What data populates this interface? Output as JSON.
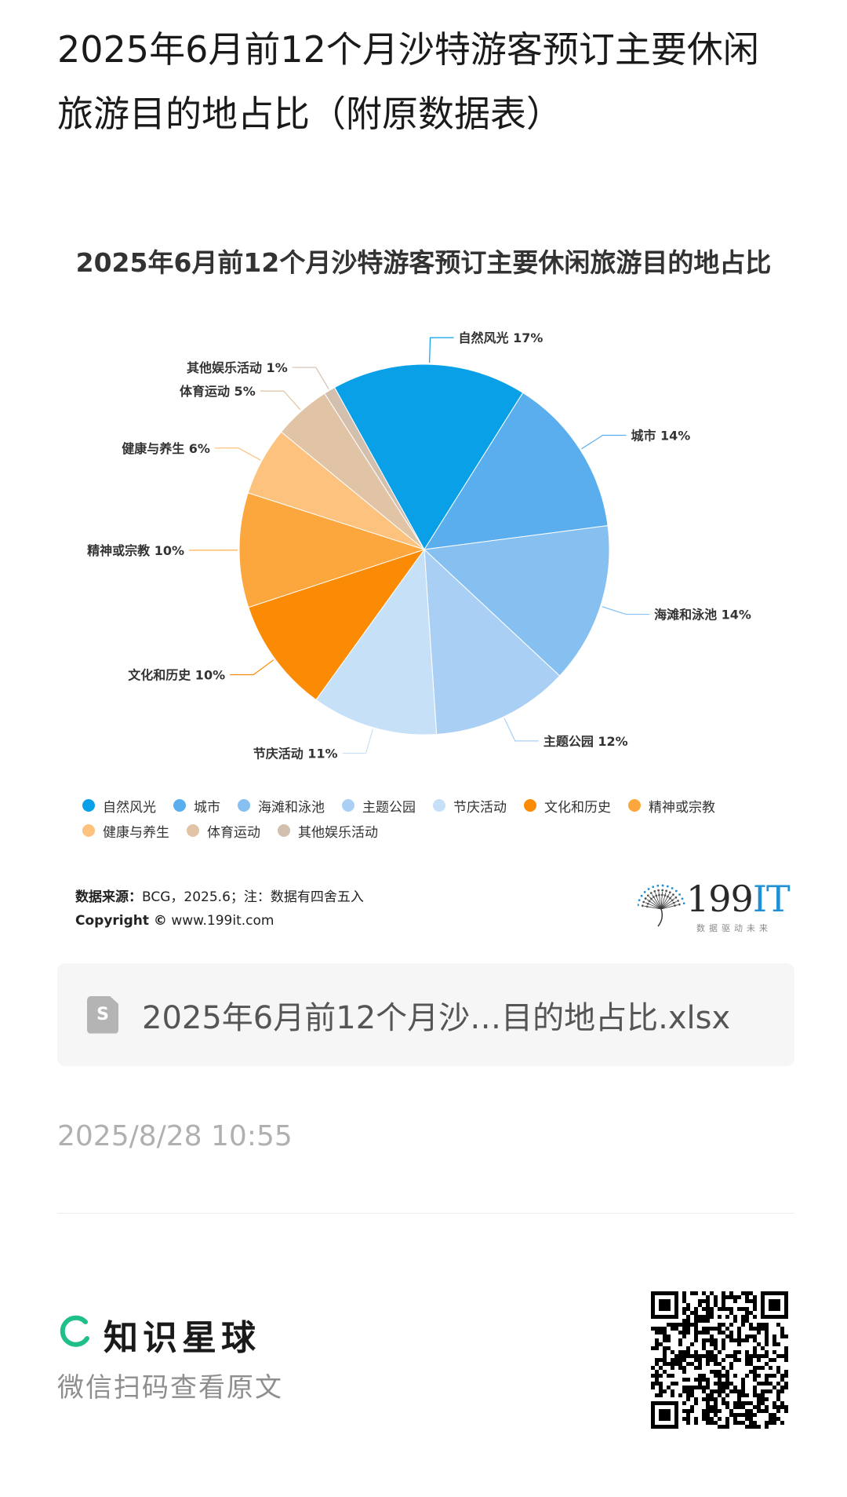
{
  "post": {
    "title": "2025年6月前12个月沙特游客预订主要休闲旅游目的地占比（附原数据表）"
  },
  "chart_data": {
    "type": "pie",
    "title": "2025年6月前12个月沙特游客预订主要休闲旅游目的地占比",
    "slices": [
      {
        "label": "自然风光",
        "value": 17,
        "text": "自然风光 17%",
        "color": "#0aa0e8"
      },
      {
        "label": "城市",
        "value": 14,
        "text": "城市 14%",
        "color": "#5aaeee"
      },
      {
        "label": "海滩和泳池",
        "value": 14,
        "text": "海滩和泳池 14%",
        "color": "#86c0f0"
      },
      {
        "label": "主题公园",
        "value": 12,
        "text": "主题公园 12%",
        "color": "#a9d0f4"
      },
      {
        "label": "节庆活动",
        "value": 11,
        "text": "节庆活动 11%",
        "color": "#c6e0f7"
      },
      {
        "label": "文化和历史",
        "value": 10,
        "text": "文化和历史 10%",
        "color": "#fb8a05"
      },
      {
        "label": "精神或宗教",
        "value": 10,
        "text": "精神或宗教 10%",
        "color": "#fca73e"
      },
      {
        "label": "健康与养生",
        "value": 6,
        "text": "健康与养生 6%",
        "color": "#fcc27e"
      },
      {
        "label": "体育运动",
        "value": 5,
        "text": "体育运动 5%",
        "color": "#e1c4a5"
      },
      {
        "label": "其他娱乐活动",
        "value": 1,
        "text": "其他娱乐活动 1%",
        "color": "#d3bfae"
      }
    ],
    "legend_position": "bottom"
  },
  "footer": {
    "source_label": "数据来源：",
    "source_text": "BCG，2025.6；注：数据有四舍五入",
    "copyright_label": "Copyright ©",
    "copyright_url": "www.199it.com"
  },
  "brand": {
    "name_a": "199",
    "name_b": "IT",
    "tagline": "数据驱动未来"
  },
  "attachment": {
    "file_icon_letter": "S",
    "file_name": "2025年6月前12个月沙…目的地占比.xlsx"
  },
  "timestamp": "2025/8/28 10:55",
  "footer_brand": {
    "name": "知识星球",
    "hint": "微信扫码查看原文"
  },
  "icons": {
    "file": "spreadsheet-file-icon",
    "logo": "zhishixingqiu-logo-icon",
    "qr": "qr-code-icon"
  }
}
